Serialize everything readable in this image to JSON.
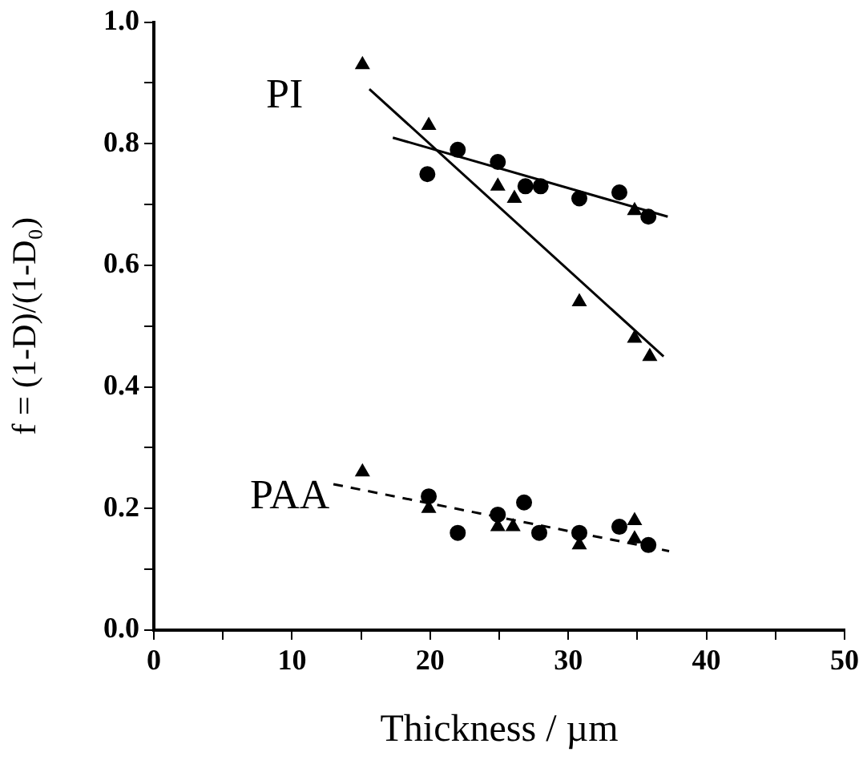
{
  "chart_data": {
    "type": "scatter",
    "xlabel": "Thickness / µm",
    "ylabel": "f = (1-D)/(1-D₀)",
    "xlim": [
      0,
      50
    ],
    "xticks": [
      0,
      {
        "value": 5,
        "label": null
      },
      10,
      {
        "value": 15,
        "label": null
      },
      20,
      {
        "value": 25,
        "label": null
      },
      30,
      {
        "value": 35,
        "label": null
      },
      40,
      {
        "value": 45,
        "label": null
      },
      50
    ],
    "ylim": [
      0,
      1
    ],
    "yticks": [
      "0.0",
      {
        "value": 0.1,
        "label": null
      },
      {
        "value": 0.2,
        "label": "0.2"
      },
      {
        "value": 0.3,
        "label": null
      },
      {
        "value": 0.4,
        "label": "0.4"
      },
      {
        "value": 0.5,
        "label": null
      },
      {
        "value": 0.6,
        "label": "0.6"
      },
      {
        "value": 0.7,
        "label": null
      },
      {
        "value": 0.8,
        "label": "0.8"
      },
      {
        "value": 0.9,
        "label": null
      },
      {
        "value": 1,
        "label": "1.0"
      }
    ],
    "grid": false,
    "legend": false,
    "annotations": [
      "PI",
      "PAA"
    ],
    "series": [
      {
        "type": "scatter",
        "marker": "circle",
        "color": "#000000",
        "x": [
          19.8,
          22.0,
          24.9,
          26.9,
          28.0,
          30.8,
          33.7,
          35.8
        ],
        "values": [
          0.75,
          0.79,
          0.77,
          0.73,
          0.73,
          0.71,
          0.72,
          0.68
        ]
      },
      {
        "type": "scatter",
        "marker": "triangle",
        "color": "#000000",
        "x": [
          15.1,
          19.9,
          24.9,
          26.1,
          30.8,
          34.8,
          34.8,
          35.9
        ],
        "values": [
          0.93,
          0.83,
          0.73,
          0.71,
          0.54,
          0.69,
          0.48,
          0.45
        ]
      },
      {
        "type": "scatter",
        "marker": "circle",
        "color": "#000000",
        "x": [
          19.9,
          22.0,
          24.9,
          26.8,
          27.9,
          30.8,
          33.7,
          35.8
        ],
        "values": [
          0.22,
          0.16,
          0.19,
          0.21,
          0.16,
          0.16,
          0.17,
          0.14
        ]
      },
      {
        "type": "scatter",
        "marker": "triangle",
        "color": "#000000",
        "x": [
          15.1,
          19.9,
          24.9,
          26.0,
          30.8,
          34.8,
          34.8
        ],
        "values": [
          0.26,
          0.2,
          0.17,
          0.17,
          0.14,
          0.18,
          0.15
        ]
      },
      {
        "type": "line",
        "marker": "none",
        "line_style": "solid",
        "color": "#000000",
        "x": [
          17.3,
          37.2
        ],
        "values": [
          0.81,
          0.68
        ]
      },
      {
        "type": "line",
        "marker": "none",
        "line_style": "solid",
        "color": "#000000",
        "x": [
          15.6,
          36.9
        ],
        "values": [
          0.89,
          0.45
        ]
      },
      {
        "type": "line",
        "marker": "none",
        "line_style": "dashed",
        "color": "#000000",
        "x": [
          13.0,
          37.3
        ],
        "values": [
          0.24,
          0.13
        ]
      }
    ]
  }
}
